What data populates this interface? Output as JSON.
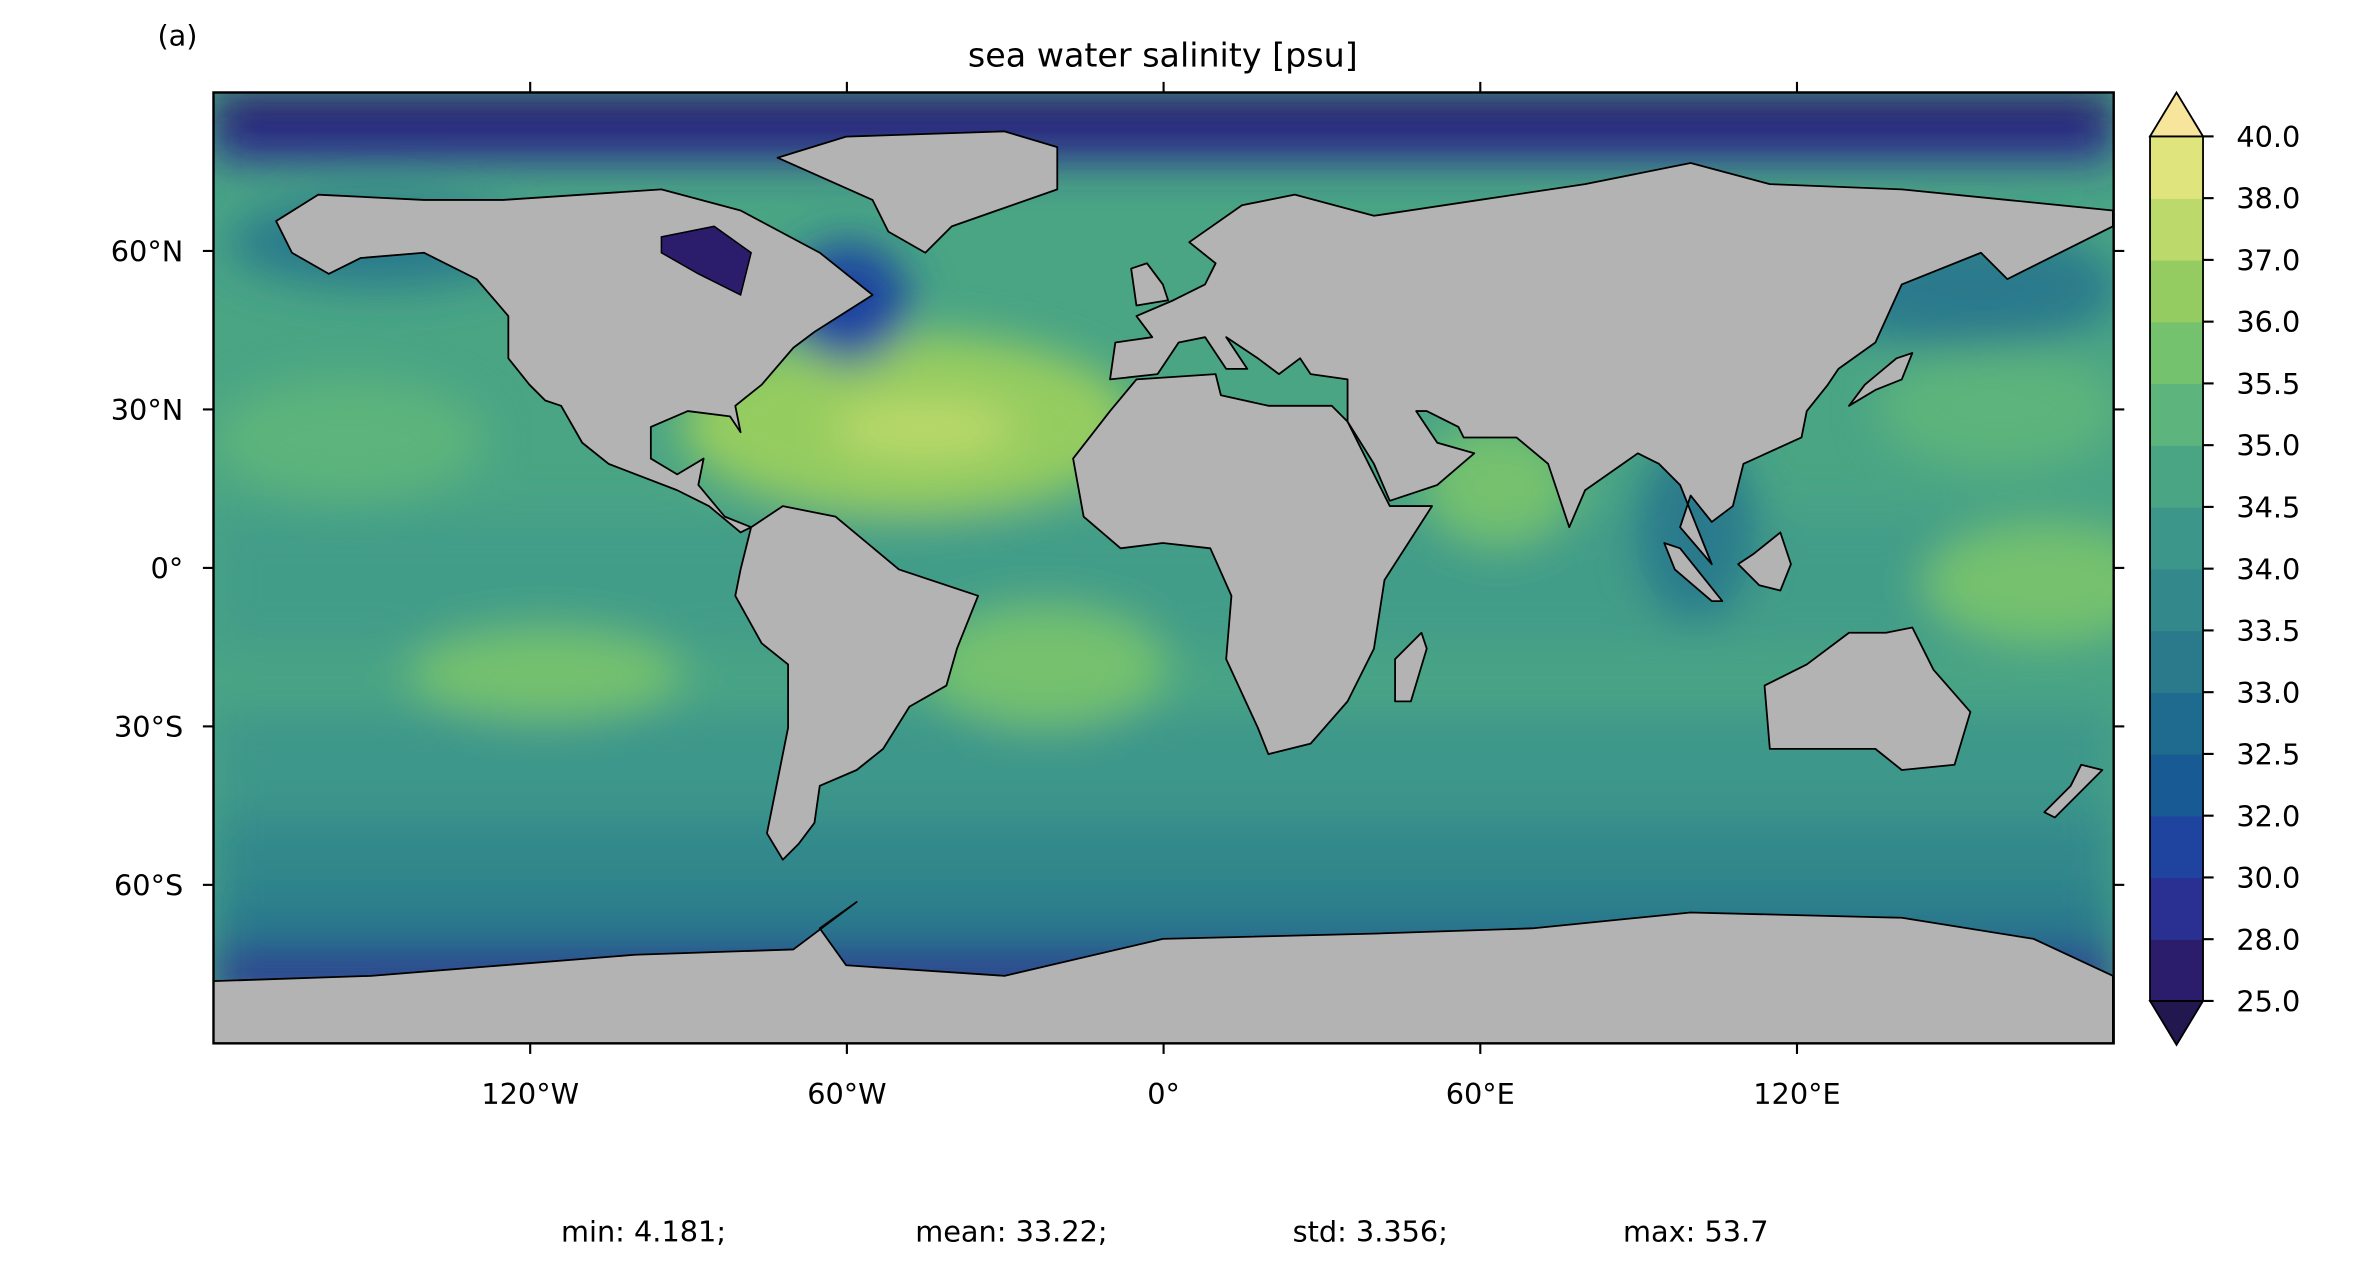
{
  "chart_data": {
    "type": "map",
    "panel_label": "(a)",
    "title": "sea water salinity [psu]",
    "xlim": [
      -180,
      180
    ],
    "ylim": [
      -90,
      90
    ],
    "xticks": [
      {
        "value": -120,
        "label": "120°W"
      },
      {
        "value": -60,
        "label": "60°W"
      },
      {
        "value": 0,
        "label": "0°"
      },
      {
        "value": 60,
        "label": "60°E"
      },
      {
        "value": 120,
        "label": "120°E"
      }
    ],
    "yticks": [
      {
        "value": 60,
        "label": "60°N"
      },
      {
        "value": 30,
        "label": "30°N"
      },
      {
        "value": 0,
        "label": "0°"
      },
      {
        "value": -30,
        "label": "30°S"
      },
      {
        "value": -60,
        "label": "60°S"
      }
    ],
    "colorbar": {
      "levels": [
        {
          "value": 25,
          "label": "25.0"
        },
        {
          "value": 28,
          "label": "28.0"
        },
        {
          "value": 30,
          "label": "30.0"
        },
        {
          "value": 32,
          "label": "32.0"
        },
        {
          "value": 32.5,
          "label": "32.5"
        },
        {
          "value": 33,
          "label": "33.0"
        },
        {
          "value": 33.5,
          "label": "33.5"
        },
        {
          "value": 34,
          "label": "34.0"
        },
        {
          "value": 34.5,
          "label": "34.5"
        },
        {
          "value": 35,
          "label": "35.0"
        },
        {
          "value": 35.5,
          "label": "35.5"
        },
        {
          "value": 36,
          "label": "36.0"
        },
        {
          "value": 37,
          "label": "37.0"
        },
        {
          "value": 38,
          "label": "38.0"
        },
        {
          "value": 40,
          "label": "40.0"
        }
      ],
      "colors": [
        "#2b1d6c",
        "#2a2f92",
        "#1f44a0",
        "#175a94",
        "#1f6a8f",
        "#2a7a8c",
        "#33888b",
        "#3c978a",
        "#4aa585",
        "#5db47c",
        "#74c16e",
        "#95cc61",
        "#bcd96b",
        "#e0e47c"
      ],
      "under_color": "#22174f",
      "over_color": "#f7e59c"
    },
    "stats": [
      "min: 4.181;",
      "mean: 33.22;",
      "std: 3.356;",
      "max: 53.7"
    ]
  }
}
